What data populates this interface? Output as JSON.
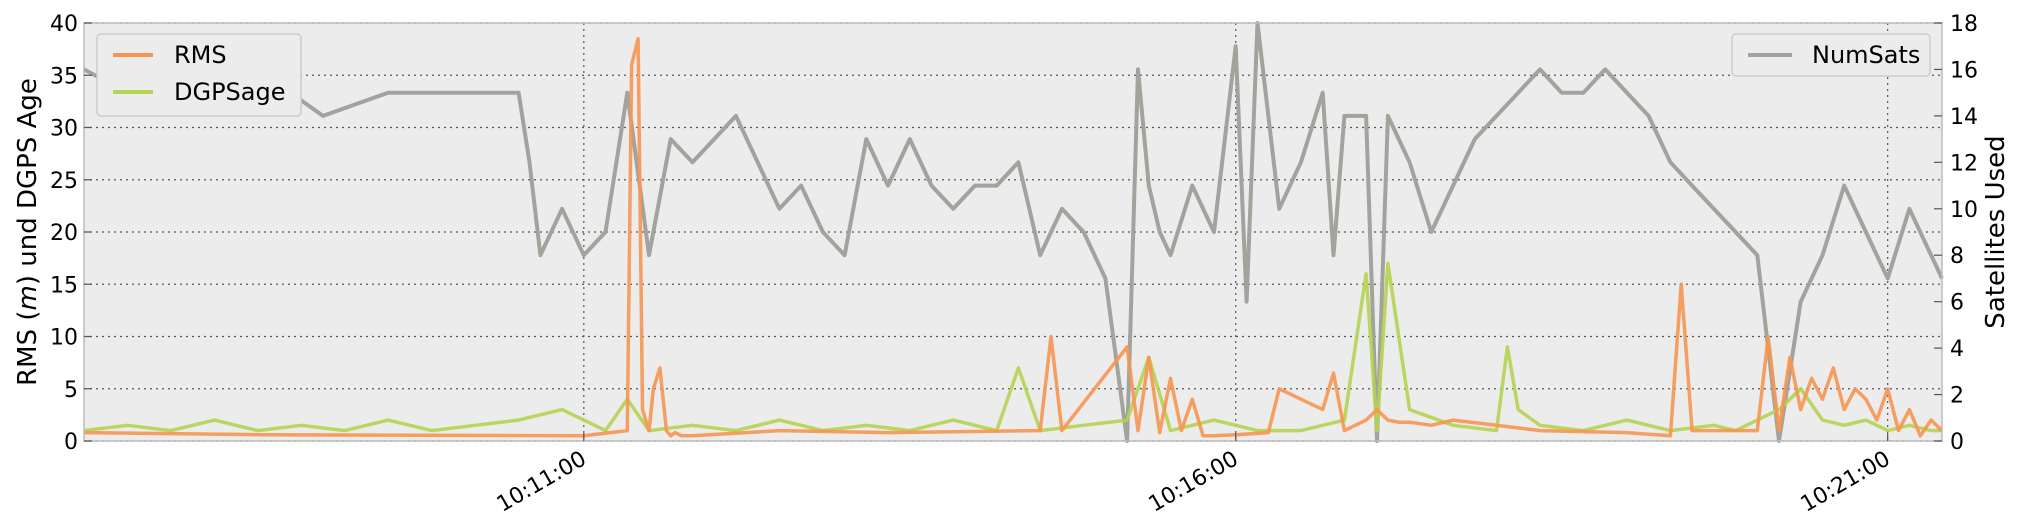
{
  "chart_data": {
    "type": "line",
    "title": "",
    "xlabel": "",
    "ylabel_left": "RMS (m) und DGPS Age",
    "ylabel_left_parts": [
      "RMS (",
      "m",
      ") und DGPS Age"
    ],
    "ylabel_right": "Satellites Used",
    "x_unit": "time of day (hh:mm:ss)",
    "xlim": [
      "10:07:10",
      "10:21:25"
    ],
    "ylim_left": [
      0,
      40
    ],
    "ylim_right": [
      0,
      18
    ],
    "yticks_left": [
      "0",
      "5",
      "10",
      "15",
      "20",
      "25",
      "30",
      "35",
      "40"
    ],
    "yticks_right": [
      "0",
      "2",
      "4",
      "6",
      "8",
      "10",
      "12",
      "14",
      "16",
      "18"
    ],
    "xticks": [
      "10:11:00",
      "10:16:00",
      "10:21:00"
    ],
    "grid": true,
    "legend_left": {
      "placement": "top-left",
      "entries": [
        "RMS",
        "DGPSage"
      ]
    },
    "legend_right": {
      "placement": "top-right",
      "entries": [
        "NumSats"
      ]
    },
    "colors": {
      "RMS": "#f79552",
      "DGPSage": "#b5d452",
      "NumSats": "#a3a39d",
      "background": "#ececec"
    },
    "series": [
      {
        "name": "RMS",
        "axis": "left",
        "x": [
          "10:07:10",
          "10:08:30",
          "10:11:00",
          "10:11:20",
          "10:11:22",
          "10:11:25",
          "10:11:27",
          "10:11:30",
          "10:11:32",
          "10:11:35",
          "10:11:38",
          "10:11:40",
          "10:11:42",
          "10:11:45",
          "10:11:48",
          "10:11:50",
          "10:12:30",
          "10:13:20",
          "10:14:30",
          "10:14:35",
          "10:14:40",
          "10:15:10",
          "10:15:15",
          "10:15:20",
          "10:15:25",
          "10:15:30",
          "10:15:35",
          "10:15:40",
          "10:15:45",
          "10:15:50",
          "10:16:00",
          "10:16:15",
          "10:16:20",
          "10:16:40",
          "10:16:45",
          "10:16:50",
          "10:17:00",
          "10:17:05",
          "10:17:10",
          "10:17:15",
          "10:17:20",
          "10:17:30",
          "10:17:40",
          "10:18:00",
          "10:18:20",
          "10:19:00",
          "10:19:20",
          "10:19:25",
          "10:19:30",
          "10:20:00",
          "10:20:05",
          "10:20:10",
          "10:20:15",
          "10:20:20",
          "10:20:25",
          "10:20:30",
          "10:20:35",
          "10:20:40",
          "10:20:45",
          "10:20:50",
          "10:20:55",
          "10:21:00",
          "10:21:05",
          "10:21:10",
          "10:21:15",
          "10:21:20",
          "10:21:25"
        ],
        "y": [
          0.8,
          0.6,
          0.5,
          1,
          36,
          38.5,
          3,
          1,
          5,
          7,
          1,
          0.5,
          0.8,
          0.5,
          0.5,
          0.5,
          1,
          0.8,
          1,
          10,
          1,
          9,
          1,
          8,
          0.8,
          6,
          1,
          4,
          0.5,
          0.5,
          0.6,
          0.8,
          5,
          3,
          6.5,
          1,
          2,
          3,
          2,
          1.8,
          1.8,
          1.5,
          2,
          1.5,
          1,
          0.8,
          0.5,
          15,
          1,
          1,
          10,
          1,
          8,
          3,
          6,
          4,
          7,
          3,
          5,
          4,
          2,
          5,
          1,
          3,
          0.5,
          2,
          1
        ]
      },
      {
        "name": "DGPSage",
        "axis": "left",
        "x": [
          "10:07:10",
          "10:07:30",
          "10:07:50",
          "10:08:10",
          "10:08:30",
          "10:08:50",
          "10:09:10",
          "10:09:30",
          "10:09:50",
          "10:10:10",
          "10:10:30",
          "10:10:50",
          "10:11:10",
          "10:11:20",
          "10:11:30",
          "10:11:50",
          "10:12:10",
          "10:12:30",
          "10:12:50",
          "10:13:10",
          "10:13:30",
          "10:13:50",
          "10:14:10",
          "10:14:20",
          "10:14:30",
          "10:14:50",
          "10:15:10",
          "10:15:20",
          "10:15:30",
          "10:15:50",
          "10:16:10",
          "10:16:30",
          "10:16:50",
          "10:17:00",
          "10:17:05",
          "10:17:10",
          "10:17:20",
          "10:17:40",
          "10:18:00",
          "10:18:05",
          "10:18:10",
          "10:18:20",
          "10:18:40",
          "10:19:00",
          "10:19:20",
          "10:19:40",
          "10:19:50",
          "10:20:00",
          "10:20:10",
          "10:20:20",
          "10:20:30",
          "10:20:40",
          "10:20:50",
          "10:21:00",
          "10:21:10",
          "10:21:20",
          "10:21:25"
        ],
        "y": [
          1,
          1.5,
          1,
          2,
          1,
          1.5,
          1,
          2,
          1,
          1.5,
          2,
          3,
          1,
          4,
          1,
          1.5,
          1,
          2,
          1,
          1.5,
          1,
          2,
          1,
          7,
          1,
          1.5,
          2,
          8,
          1,
          2,
          1,
          1,
          2,
          16,
          1,
          17,
          3,
          1.5,
          1,
          9,
          3,
          1.5,
          1,
          2,
          1,
          1.5,
          1,
          2,
          3,
          5,
          2,
          1.5,
          2,
          1,
          1.5,
          1,
          1
        ]
      },
      {
        "name": "NumSats",
        "axis": "right",
        "x": [
          "10:07:10",
          "10:07:30",
          "10:08:00",
          "10:08:30",
          "10:09:00",
          "10:09:30",
          "10:10:00",
          "10:10:30",
          "10:10:35",
          "10:10:40",
          "10:10:50",
          "10:11:00",
          "10:11:10",
          "10:11:20",
          "10:11:30",
          "10:11:40",
          "10:11:50",
          "10:12:00",
          "10:12:10",
          "10:12:20",
          "10:12:30",
          "10:12:40",
          "10:12:50",
          "10:13:00",
          "10:13:10",
          "10:13:20",
          "10:13:30",
          "10:13:40",
          "10:13:50",
          "10:14:00",
          "10:14:10",
          "10:14:20",
          "10:14:30",
          "10:14:40",
          "10:14:50",
          "10:15:00",
          "10:15:10",
          "10:15:15",
          "10:15:20",
          "10:15:25",
          "10:15:30",
          "10:15:40",
          "10:15:50",
          "10:16:00",
          "10:16:05",
          "10:16:10",
          "10:16:20",
          "10:16:30",
          "10:16:40",
          "10:16:45",
          "10:16:50",
          "10:17:00",
          "10:17:05",
          "10:17:10",
          "10:17:20",
          "10:17:30",
          "10:17:40",
          "10:17:50",
          "10:18:00",
          "10:18:10",
          "10:18:20",
          "10:18:30",
          "10:18:40",
          "10:18:50",
          "10:19:00",
          "10:19:10",
          "10:19:20",
          "10:19:30",
          "10:19:40",
          "10:19:50",
          "10:20:00",
          "10:20:10",
          "10:20:20",
          "10:20:30",
          "10:20:40",
          "10:20:50",
          "10:21:00",
          "10:21:10",
          "10:21:20",
          "10:21:25"
        ],
        "y": [
          16,
          15,
          16,
          16,
          14,
          15,
          15,
          15,
          12,
          8,
          10,
          8,
          9,
          15,
          8,
          13,
          12,
          13,
          14,
          12,
          10,
          11,
          9,
          8,
          13,
          11,
          13,
          11,
          10,
          11,
          11,
          12,
          8,
          10,
          9,
          7,
          0,
          16,
          11,
          9,
          8,
          11,
          9,
          17,
          6,
          18,
          10,
          12,
          15,
          8,
          14,
          14,
          0,
          14,
          12,
          9,
          11,
          13,
          14,
          15,
          16,
          15,
          15,
          16,
          15,
          14,
          12,
          11,
          10,
          9,
          8,
          0,
          6,
          8,
          11,
          9,
          7,
          10,
          8,
          7
        ]
      }
    ]
  }
}
